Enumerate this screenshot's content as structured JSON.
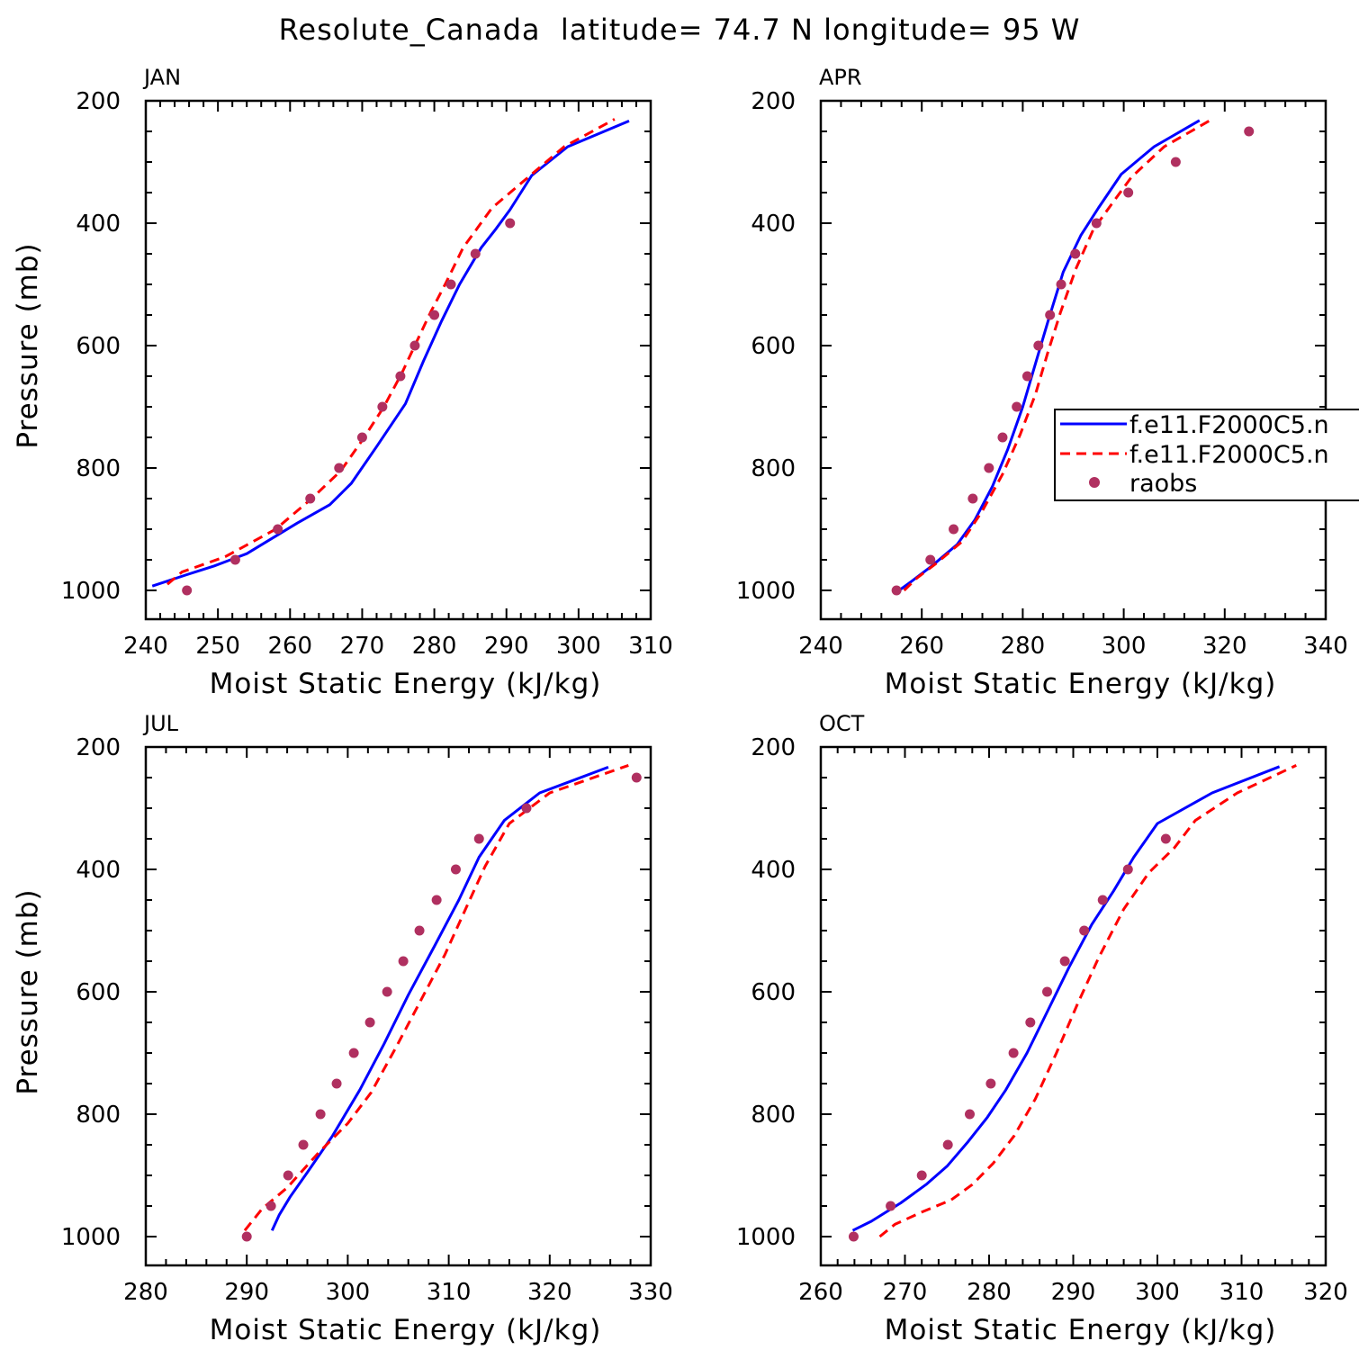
{
  "figure": {
    "title": "Resolute_Canada  latitude= 74.7 N longitude= 95 W"
  },
  "legend": {
    "entries": [
      {
        "label": "f.e11.F2000C5.n",
        "color": "#0000ff",
        "style": "solid"
      },
      {
        "label": "f.e11.F2000C5.n",
        "color": "#ff0000",
        "style": "dashed"
      },
      {
        "label": "raobs",
        "color": "#b03060",
        "style": "dot"
      }
    ]
  },
  "chart_data": [
    {
      "type": "line",
      "title": "JAN",
      "xlabel": "Moist Static Energy (kJ/kg)",
      "ylabel": "Pressure (mb)",
      "xlim": [
        240,
        310
      ],
      "ylim": [
        200,
        1000
      ],
      "y_inverted": true,
      "xticks": [
        240,
        250,
        260,
        270,
        280,
        290,
        300,
        310
      ],
      "yticks": [
        200,
        400,
        600,
        800,
        1000
      ],
      "grid": false,
      "series": [
        {
          "color": "#0000ff",
          "style": "solid",
          "x": [
            240.9,
            245.5,
            249.5,
            254,
            261,
            265.5,
            268.5,
            272,
            276,
            278.5,
            281,
            283.5,
            286.5,
            288.5,
            290.5,
            293.5,
            298.5,
            307
          ],
          "y": [
            993,
            975,
            960,
            940,
            890,
            860,
            825,
            765,
            695,
            625,
            560,
            500,
            440,
            410,
            378,
            322,
            275,
            233
          ]
        },
        {
          "color": "#ff0000",
          "style": "dashed",
          "x": [
            243,
            245,
            251,
            258,
            263,
            267,
            270,
            273,
            275.5,
            277.5,
            279.5,
            281.5,
            284,
            288,
            293.5,
            298,
            305
          ],
          "y": [
            990,
            970,
            945,
            900,
            850,
            805,
            755,
            700,
            645,
            595,
            545,
            500,
            440,
            375,
            320,
            275,
            230
          ]
        },
        {
          "color": "#b03060",
          "style": "dot",
          "x": [
            245.7,
            252.4,
            258.3,
            262.8,
            266.8,
            270,
            272.8,
            275.3,
            277.3,
            280,
            282.3,
            285.7,
            290.5
          ],
          "y": [
            1000,
            950,
            900,
            850,
            800,
            750,
            700,
            650,
            600,
            550,
            500,
            450,
            400
          ]
        }
      ]
    },
    {
      "type": "line",
      "title": "APR",
      "xlabel": "Moist Static Energy (kJ/kg)",
      "ylabel": "",
      "xlim": [
        240,
        340
      ],
      "ylim": [
        200,
        1000
      ],
      "y_inverted": true,
      "xticks": [
        240,
        260,
        280,
        300,
        320,
        340
      ],
      "yticks": [
        200,
        400,
        600,
        800,
        1000
      ],
      "grid": false,
      "series": [
        {
          "color": "#0000ff",
          "style": "solid",
          "x": [
            255.5,
            258,
            262,
            267,
            270.5,
            274,
            277,
            280,
            282.5,
            285,
            288,
            291.5,
            295,
            299.5,
            306,
            315
          ],
          "y": [
            1000,
            985,
            960,
            925,
            885,
            830,
            770,
            700,
            630,
            560,
            480,
            420,
            375,
            320,
            275,
            232
          ]
        },
        {
          "color": "#ff0000",
          "style": "dashed",
          "x": [
            256.5,
            259,
            263,
            268,
            272,
            276,
            279.5,
            282.5,
            285,
            287.5,
            290.5,
            294,
            297.5,
            301.5,
            308,
            317.5
          ],
          "y": [
            1000,
            980,
            955,
            920,
            870,
            810,
            745,
            680,
            610,
            545,
            475,
            410,
            370,
            325,
            275,
            230
          ]
        },
        {
          "color": "#b03060",
          "style": "dot",
          "x": [
            255,
            261.7,
            266.3,
            270.1,
            273.3,
            276,
            278.8,
            280.9,
            283.1,
            285.4,
            287.6,
            290.4,
            294.6,
            300.9,
            310.3,
            324.8
          ],
          "y": [
            1000,
            950,
            900,
            850,
            800,
            750,
            700,
            650,
            600,
            550,
            500,
            450,
            400,
            350,
            300,
            250
          ]
        }
      ]
    },
    {
      "type": "line",
      "title": "JUL",
      "xlabel": "Moist Static Energy (kJ/kg)",
      "ylabel": "Pressure (mb)",
      "xlim": [
        280,
        330
      ],
      "ylim": [
        200,
        1000
      ],
      "y_inverted": true,
      "xticks": [
        280,
        290,
        300,
        310,
        320,
        330
      ],
      "yticks": [
        200,
        400,
        600,
        800,
        1000
      ],
      "grid": false,
      "series": [
        {
          "color": "#0000ff",
          "style": "solid",
          "x": [
            292.5,
            293.2,
            294.3,
            296,
            298.5,
            301.2,
            303.6,
            306,
            308.6,
            311,
            313,
            315.5,
            319,
            325.8
          ],
          "y": [
            990,
            965,
            935,
            895,
            835,
            760,
            685,
            605,
            525,
            450,
            380,
            320,
            275,
            233
          ]
        },
        {
          "color": "#ff0000",
          "style": "dashed",
          "x": [
            289.8,
            291.5,
            294,
            297,
            300,
            302.3,
            304.8,
            307.2,
            309.6,
            311.8,
            313.6,
            316,
            320,
            327.8
          ],
          "y": [
            990,
            955,
            920,
            865,
            815,
            765,
            690,
            615,
            540,
            460,
            395,
            325,
            275,
            230
          ]
        },
        {
          "color": "#b03060",
          "style": "dot",
          "x": [
            290,
            292.4,
            294.1,
            295.6,
            297.3,
            298.9,
            300.6,
            302.2,
            303.9,
            305.5,
            307.1,
            308.8,
            310.7,
            313,
            317.7,
            328.6
          ],
          "y": [
            1000,
            950,
            900,
            850,
            800,
            750,
            700,
            650,
            600,
            550,
            500,
            450,
            400,
            350,
            300,
            250
          ]
        }
      ]
    },
    {
      "type": "line",
      "title": "OCT",
      "xlabel": "Moist Static Energy (kJ/kg)",
      "ylabel": "",
      "xlim": [
        260,
        320
      ],
      "ylim": [
        200,
        1000
      ],
      "y_inverted": true,
      "xticks": [
        260,
        270,
        280,
        290,
        300,
        310,
        320
      ],
      "yticks": [
        200,
        400,
        600,
        800,
        1000
      ],
      "grid": false,
      "series": [
        {
          "color": "#0000ff",
          "style": "solid",
          "x": [
            263.8,
            266,
            269.5,
            272.5,
            275,
            277.5,
            279.8,
            282,
            284.5,
            287,
            289.5,
            292.2,
            294.8,
            297.2,
            300,
            306.5,
            314.5
          ],
          "y": [
            990,
            975,
            945,
            915,
            885,
            845,
            805,
            760,
            700,
            630,
            560,
            490,
            435,
            380,
            325,
            275,
            232
          ]
        },
        {
          "color": "#ff0000",
          "style": "dashed",
          "x": [
            267,
            268.8,
            272,
            275.5,
            278,
            280.5,
            283,
            285.5,
            288,
            290.5,
            293,
            296,
            299,
            302,
            304.5,
            309.5,
            316.5
          ],
          "y": [
            1000,
            980,
            960,
            940,
            915,
            880,
            835,
            775,
            700,
            620,
            545,
            465,
            405,
            365,
            320,
            275,
            230
          ]
        },
        {
          "color": "#b03060",
          "style": "dot",
          "x": [
            263.9,
            268.3,
            272,
            275.1,
            277.7,
            280.2,
            282.9,
            284.9,
            286.9,
            289,
            291.3,
            293.5,
            296.5,
            301
          ],
          "y": [
            1000,
            950,
            900,
            850,
            800,
            750,
            700,
            650,
            600,
            550,
            500,
            450,
            400,
            350
          ]
        }
      ]
    }
  ]
}
